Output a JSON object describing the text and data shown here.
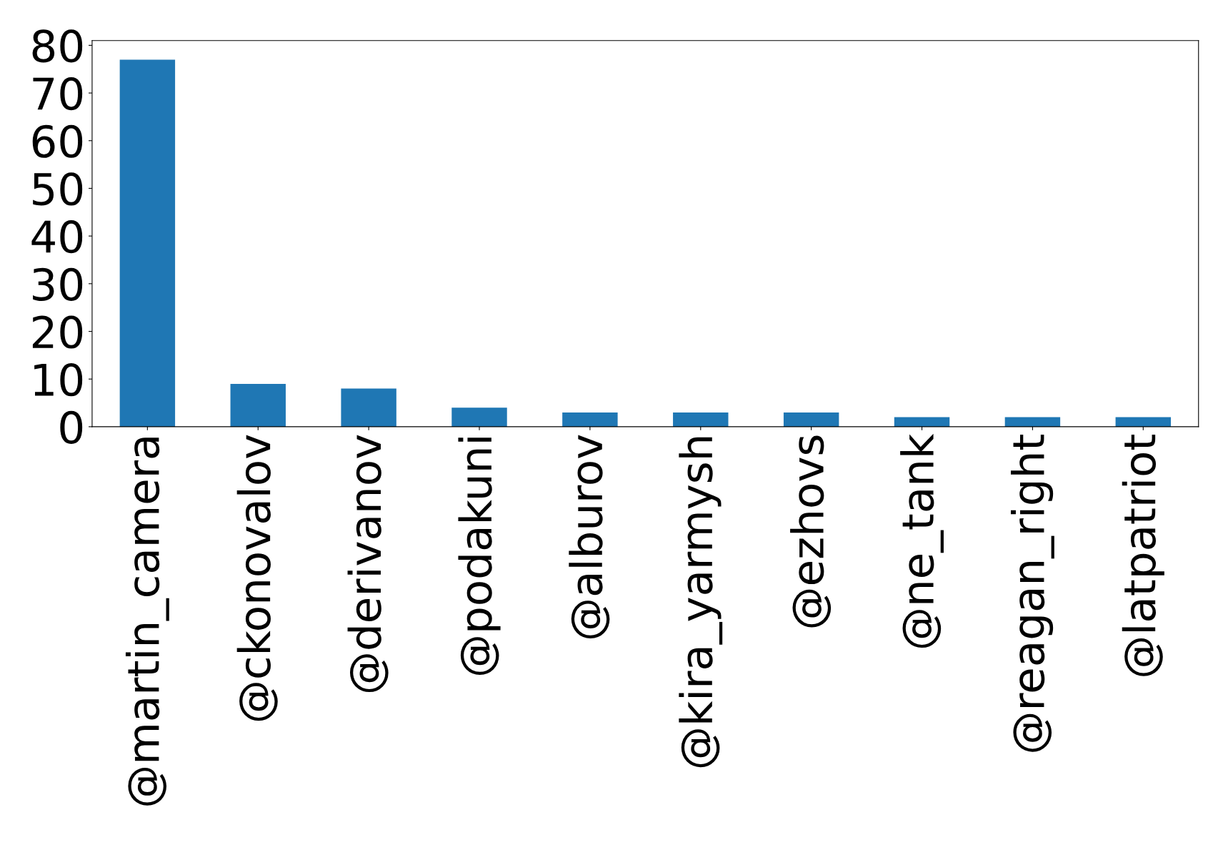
{
  "chart_data": {
    "type": "bar",
    "categories": [
      "@martin_camera",
      "@ckonovalov",
      "@derivanov",
      "@podakuni",
      "@alburov",
      "@kira_yarmysh",
      "@ezhovs",
      "@ne_tank",
      "@reagan_right",
      "@latpatriot"
    ],
    "values": [
      77,
      9,
      8,
      4,
      3,
      3,
      3,
      2,
      2,
      2
    ],
    "color": "#1f77b4",
    "ylim": [
      0,
      81
    ],
    "yticks": [
      0,
      10,
      20,
      30,
      40,
      50,
      60,
      70,
      80
    ]
  }
}
